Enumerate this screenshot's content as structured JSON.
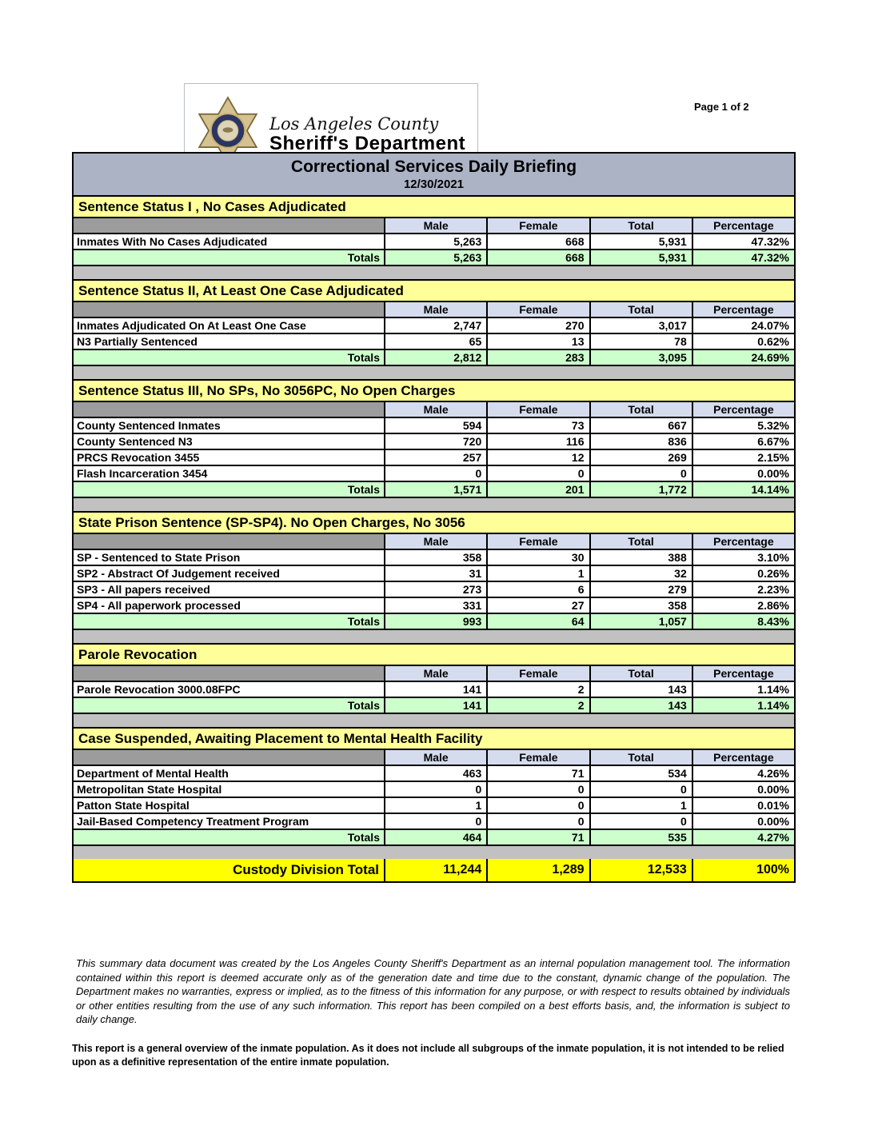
{
  "page_indicator": "Page 1 of 2",
  "logo": {
    "line1": "Los Angeles County",
    "line2": "Sheriff's Department",
    "icon": "sheriff-star-badge"
  },
  "banner": {
    "title": "Correctional Services Daily Briefing",
    "date": "12/30/2021"
  },
  "columns": [
    "Male",
    "Female",
    "Total",
    "Percentage"
  ],
  "totals_label": "Totals",
  "sections": [
    {
      "title": "Sentence Status I , No Cases Adjudicated",
      "rows": [
        {
          "label": "Inmates With No Cases Adjudicated",
          "cells": [
            "5,263",
            "668",
            "5,931",
            "47.32%"
          ]
        }
      ],
      "totals": [
        "5,263",
        "668",
        "5,931",
        "47.32%"
      ]
    },
    {
      "title": "Sentence Status II, At Least One Case Adjudicated",
      "rows": [
        {
          "label": "Inmates Adjudicated On At Least One Case",
          "cells": [
            "2,747",
            "270",
            "3,017",
            "24.07%"
          ]
        },
        {
          "label": "N3 Partially Sentenced",
          "cells": [
            "65",
            "13",
            "78",
            "0.62%"
          ]
        }
      ],
      "totals": [
        "2,812",
        "283",
        "3,095",
        "24.69%"
      ]
    },
    {
      "title": "Sentence Status III, No SPs, No 3056PC, No Open Charges",
      "rows": [
        {
          "label": "County Sentenced Inmates",
          "cells": [
            "594",
            "73",
            "667",
            "5.32%"
          ]
        },
        {
          "label": "County Sentenced N3",
          "cells": [
            "720",
            "116",
            "836",
            "6.67%"
          ]
        },
        {
          "label": "PRCS Revocation 3455",
          "cells": [
            "257",
            "12",
            "269",
            "2.15%"
          ]
        },
        {
          "label": "Flash Incarceration 3454",
          "cells": [
            "0",
            "0",
            "0",
            "0.00%"
          ]
        }
      ],
      "totals": [
        "1,571",
        "201",
        "1,772",
        "14.14%"
      ]
    },
    {
      "title": "State Prison Sentence (SP-SP4). No Open Charges, No 3056",
      "rows": [
        {
          "label": "SP - Sentenced to State Prison",
          "cells": [
            "358",
            "30",
            "388",
            "3.10%"
          ]
        },
        {
          "label": "SP2 - Abstract Of Judgement received",
          "cells": [
            "31",
            "1",
            "32",
            "0.26%"
          ]
        },
        {
          "label": "SP3 - All papers received",
          "cells": [
            "273",
            "6",
            "279",
            "2.23%"
          ]
        },
        {
          "label": "SP4 - All paperwork processed",
          "cells": [
            "331",
            "27",
            "358",
            "2.86%"
          ]
        }
      ],
      "totals": [
        "993",
        "64",
        "1,057",
        "8.43%"
      ]
    },
    {
      "title": "Parole Revocation",
      "rows": [
        {
          "label": "Parole Revocation 3000.08FPC",
          "cells": [
            "141",
            "2",
            "143",
            "1.14%"
          ]
        }
      ],
      "totals": [
        "141",
        "2",
        "143",
        "1.14%"
      ]
    },
    {
      "title": "Case Suspended, Awaiting Placement to Mental Health Facility",
      "rows": [
        {
          "label": "Department of Mental Health",
          "cells": [
            "463",
            "71",
            "534",
            "4.26%"
          ]
        },
        {
          "label": "Metropolitan State Hospital",
          "cells": [
            "0",
            "0",
            "0",
            "0.00%"
          ]
        },
        {
          "label": "Patton State Hospital",
          "cells": [
            "1",
            "0",
            "1",
            "0.01%"
          ]
        },
        {
          "label": "Jail-Based Competency Treatment Program",
          "cells": [
            "0",
            "0",
            "0",
            "0.00%"
          ]
        }
      ],
      "totals": [
        "464",
        "71",
        "535",
        "4.27%"
      ]
    }
  ],
  "grand_total": {
    "label": "Custody Division Total",
    "cells": [
      "11,244",
      "1,289",
      "12,533",
      "100%"
    ]
  },
  "footnotes": {
    "disclaimer": "This summary data document was created by the Los Angeles County Sheriff's Department as an internal population management tool.  The information contained within this report is deemed accurate only as of the generation date and time due to the constant, dynamic change of the population.  The Department makes no warranties, express or implied, as to the fitness of this information for any purpose, or with respect to results obtained by individuals or other entities resulting from the use of any such information.  This report has been compiled on a best efforts basis, and, the information is subject to daily change.",
    "overview": "This report is a general overview of the inmate population.  As it does not include all subgroups of the inmate population, it is not intended to be relied upon as a definitive representation of the entire inmate population."
  },
  "colors": {
    "banner_bg": "#abb3c5",
    "section_title_bg": "#ffff99",
    "column_header_bg": "#d4dcee",
    "header_corner_bg": "#9c9c9c",
    "totals_bg": "#ccffcc",
    "grand_total_bg": "#ffff00",
    "gap_bg": "#c1c1c1"
  }
}
